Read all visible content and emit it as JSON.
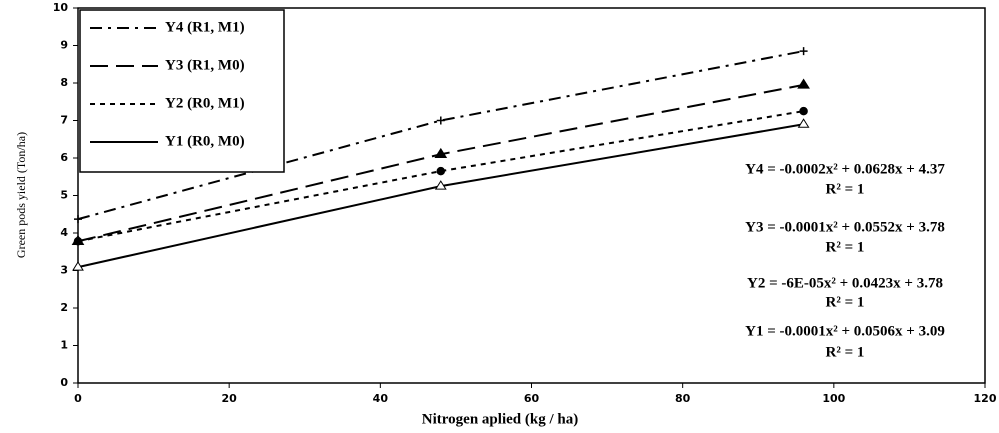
{
  "chart_data": {
    "type": "line",
    "xlabel": "Nitrogen aplied (kg / ha)",
    "ylabel": "Green pods yield (Ton/ha)",
    "x": [
      0,
      48,
      96
    ],
    "series": [
      {
        "name": "Y4 (R1, M1)",
        "color": "#000000",
        "values": [
          4.37,
          7.0,
          8.85
        ]
      },
      {
        "name": "Y3 (R1, M0)",
        "color": "#000000",
        "values": [
          3.78,
          6.1,
          7.95
        ]
      },
      {
        "name": "Y2 (R0, M1)",
        "color": "#000000",
        "values": [
          3.78,
          5.65,
          7.25
        ]
      },
      {
        "name": "Y1 (R0, M0)",
        "color": "#000000",
        "values": [
          3.09,
          5.25,
          6.9
        ]
      }
    ],
    "annotations": [
      "Y4 = -0.0002x² + 0.0628x + 4.37",
      "R² = 1",
      "Y3 = -0.0001x² + 0.0552x + 3.78",
      "R² = 1",
      "Y2 = -6E-05x² + 0.0423x + 3.78",
      "R² = 1",
      "Y1 = -0.0001x² + 0.0506x + 3.09",
      "R² = 1"
    ],
    "xlim": [
      0,
      120
    ],
    "xticks": [
      0,
      20,
      40,
      60,
      80,
      100,
      120
    ],
    "ylim": [
      0,
      10
    ],
    "yticks": [
      0,
      1,
      2,
      3,
      4,
      5,
      6,
      7,
      8,
      9,
      10
    ],
    "legend": "upper left"
  }
}
